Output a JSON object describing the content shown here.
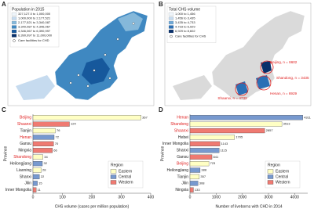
{
  "panels": [
    "A",
    "B",
    "C",
    "D"
  ],
  "maps": [
    {
      "legend_title": "Population in 2015",
      "legend_items": [
        {
          "label": "327,127.0 to 1,000,000",
          "color": "#eef5fb"
        },
        {
          "label": "1,000,000 to 2,177,521",
          "color": "#c6dbef"
        },
        {
          "label": "2,177,521 to 3,340,087",
          "color": "#85b8da"
        },
        {
          "label": "3,340,087 to 4,346,067",
          "color": "#3f88c1"
        },
        {
          "label": "4,346,067 to 6,390,997",
          "color": "#16589c"
        },
        {
          "label": "6,390,997 to 11,000,000",
          "color": "#08306b"
        }
      ],
      "facility_label": "Care facilities for CHD"
    },
    {
      "legend_title": "Total CHS volume",
      "legend_items": [
        {
          "label": "1,000 to 1,456",
          "color": "#eef5fb"
        },
        {
          "label": "1,456 to 3,435",
          "color": "#c6dbef"
        },
        {
          "label": "3,435 to 4,733",
          "color": "#6fa8d6"
        },
        {
          "label": "4,733 to 6,929",
          "color": "#2a6fb5"
        },
        {
          "label": "6,929 to 8,602",
          "color": "#08306b"
        }
      ],
      "facility_label": "Care facilities for CHS",
      "annotations": [
        "Beijing, n = 8602",
        "Shandong, n = 3435",
        "Henan, n = 6929",
        "Shaanxi, n = 4733"
      ]
    }
  ],
  "chart_data": [
    {
      "type": "bar",
      "orientation": "horizontal",
      "categories": [
        "Beijing",
        "Shaanxi",
        "Tianjin",
        "Henan",
        "Gansu",
        "Ningxia",
        "Shandong",
        "Heilongjiang",
        "Liaoning",
        "Shanxi",
        "Jilin",
        "Inner Mongolia"
      ],
      "values": [
        367,
        124,
        76,
        72,
        70,
        66,
        34,
        32,
        28,
        22,
        15,
        11
      ],
      "colors": [
        "#ffffc4",
        "#ef7a72",
        "#ffffc4",
        "#7799cf",
        "#ef7a72",
        "#ef7a72",
        "#ffffc4",
        "#7799cf",
        "#ffffc4",
        "#7799cf",
        "#7799cf",
        "#ef7a72"
      ],
      "label_colors": [
        "#e02020",
        "#e02020",
        "#222222",
        "#e02020",
        "#222222",
        "#222222",
        "#e02020",
        "#222222",
        "#222222",
        "#222222",
        "#222222",
        "#222222"
      ],
      "xlim": [
        0,
        400
      ],
      "xticks": [
        0,
        100,
        200,
        300,
        400
      ],
      "x_label": "CHS volume (cases per million population)",
      "y_label": "Province",
      "legend": {
        "title": "Region",
        "items": [
          {
            "name": "Eastern",
            "color": "#ffffc4"
          },
          {
            "name": "Central",
            "color": "#7799cf"
          },
          {
            "name": "Western",
            "color": "#ef7a72"
          }
        ]
      }
    },
    {
      "type": "bar",
      "orientation": "horizontal",
      "categories": [
        "Henan",
        "Shandong",
        "Shaanxi",
        "Hebei",
        "Inner Mongolia",
        "Shanxi",
        "Gansu",
        "Beijing",
        "Heilongjiang",
        "Tianjin",
        "Jilin",
        "Ningxia"
      ],
      "values": [
        4311,
        3513,
        2857,
        1705,
        1143,
        1115,
        841,
        723,
        388,
        357,
        308,
        133
      ],
      "colors": [
        "#7799cf",
        "#ffffc4",
        "#ef7a72",
        "#ffffc4",
        "#ef7a72",
        "#7799cf",
        "#ef7a72",
        "#ffffc4",
        "#7799cf",
        "#ffffc4",
        "#7799cf",
        "#ef7a72"
      ],
      "label_colors": [
        "#e02020",
        "#e02020",
        "#e02020",
        "#222222",
        "#222222",
        "#222222",
        "#222222",
        "#e02020",
        "#222222",
        "#222222",
        "#222222",
        "#222222"
      ],
      "xlim": [
        0,
        4500
      ],
      "xticks": [
        0,
        1000,
        2000,
        3000,
        4000
      ],
      "x_label": "Number of liveborns with CHD in 2014",
      "y_label": "Province",
      "legend": {
        "title": "Region",
        "items": [
          {
            "name": "Eastern",
            "color": "#ffffc4"
          },
          {
            "name": "Central",
            "color": "#7799cf"
          },
          {
            "name": "Western",
            "color": "#ef7a72"
          }
        ]
      }
    }
  ]
}
